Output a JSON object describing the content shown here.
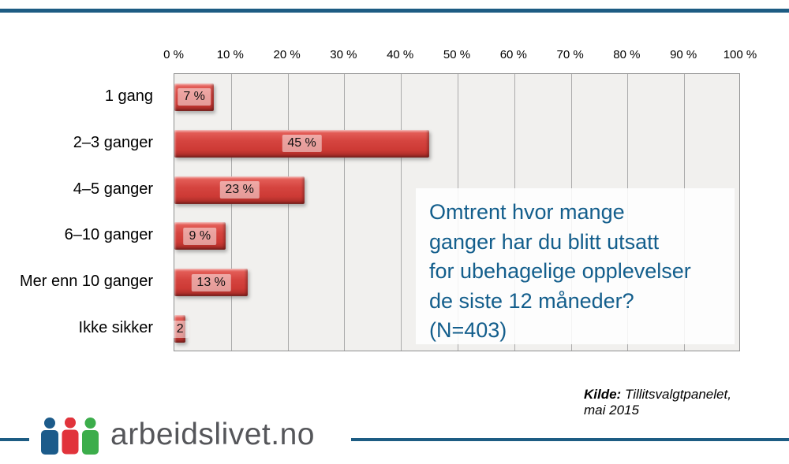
{
  "chart_data": {
    "type": "bar",
    "orientation": "horizontal",
    "title": "",
    "categories": [
      "1 gang",
      "2–3 ganger",
      "4–5 ganger",
      "6–10 ganger",
      "Mer enn 10 ganger",
      "Ikke sikker"
    ],
    "values": [
      7,
      45,
      23,
      9,
      13,
      2
    ],
    "data_labels": [
      "7 %",
      "45 %",
      "23 %",
      "9 %",
      "13 %",
      "2"
    ],
    "x_axis": {
      "position": "top",
      "min": 0,
      "max": 100,
      "tick_interval": 10,
      "tick_labels": [
        "0 %",
        "10 %",
        "20 %",
        "30 %",
        "40 %",
        "50 %",
        "60 %",
        "70 %",
        "80 %",
        "90 %",
        "100 %"
      ]
    },
    "grid": "vertical-only",
    "legend": "none",
    "bar_color": "#d8433e",
    "plot_background": "#f1f0ee",
    "annotation": "Omtrent hvor mange ganger har du blitt utsatt for ubehagelige opplevelser de siste 12 måneder? (N=403)",
    "source": "Kilde: Tillitsvalgtpanelet, mai 2015"
  },
  "question": {
    "lines": [
      "Omtrent hvor mange",
      "ganger har du blitt utsatt",
      "for ubehagelige opplevelser",
      "de siste 12 måneder?",
      "(N=403)"
    ]
  },
  "source": {
    "prefix": "Kilde:",
    "text": " Tillitsvalgtpanelet,",
    "line2": "mai 2015"
  },
  "logo": {
    "text": "arbeidslivet.no"
  },
  "colors": {
    "accent_rule": "#1d5c83",
    "bar_red": "#d8433e",
    "question_text": "#135e8c",
    "plot_background": "#f1f0ee",
    "gridline": "#ababab",
    "logo_text": "#55565a",
    "logo_person_blue": "#1c5b8a",
    "logo_person_red": "#e1333b",
    "logo_person_green": "#3cad4b"
  }
}
